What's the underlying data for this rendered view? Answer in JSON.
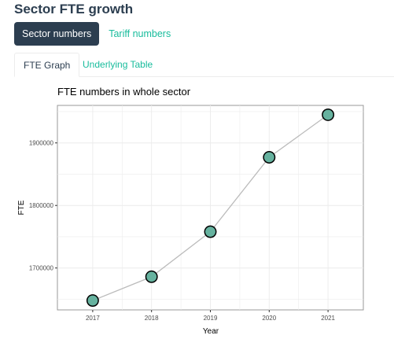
{
  "page": {
    "title": "Sector FTE growth"
  },
  "pill_tabs": [
    {
      "label": "Sector numbers",
      "active": true
    },
    {
      "label": "Tariff numbers",
      "active": false
    }
  ],
  "tabs": [
    {
      "label": "FTE Graph",
      "active": true
    },
    {
      "label": "Underlying Table",
      "active": false
    }
  ],
  "colors": {
    "nav_active_bg": "#2c3e50",
    "link": "#18bc9c",
    "point_fill": "#66b29f",
    "line": "#bbbbbb",
    "panel_border": "#999999",
    "grid": "#ececec"
  },
  "chart_data": {
    "type": "line",
    "title": "FTE numbers in whole sector",
    "xlabel": "Year",
    "ylabel": "FTE",
    "x": [
      2017,
      2018,
      2019,
      2020,
      2021
    ],
    "y": [
      1648000,
      1686000,
      1758000,
      1877000,
      1945000
    ],
    "xlim": [
      2016.4,
      2021.6
    ],
    "ylim": [
      1633000,
      1960000
    ],
    "y_ticks": [
      1700000,
      1800000,
      1900000
    ],
    "x_ticks": [
      2017,
      2018,
      2019,
      2020,
      2021
    ],
    "grid": true,
    "legend": "none"
  }
}
